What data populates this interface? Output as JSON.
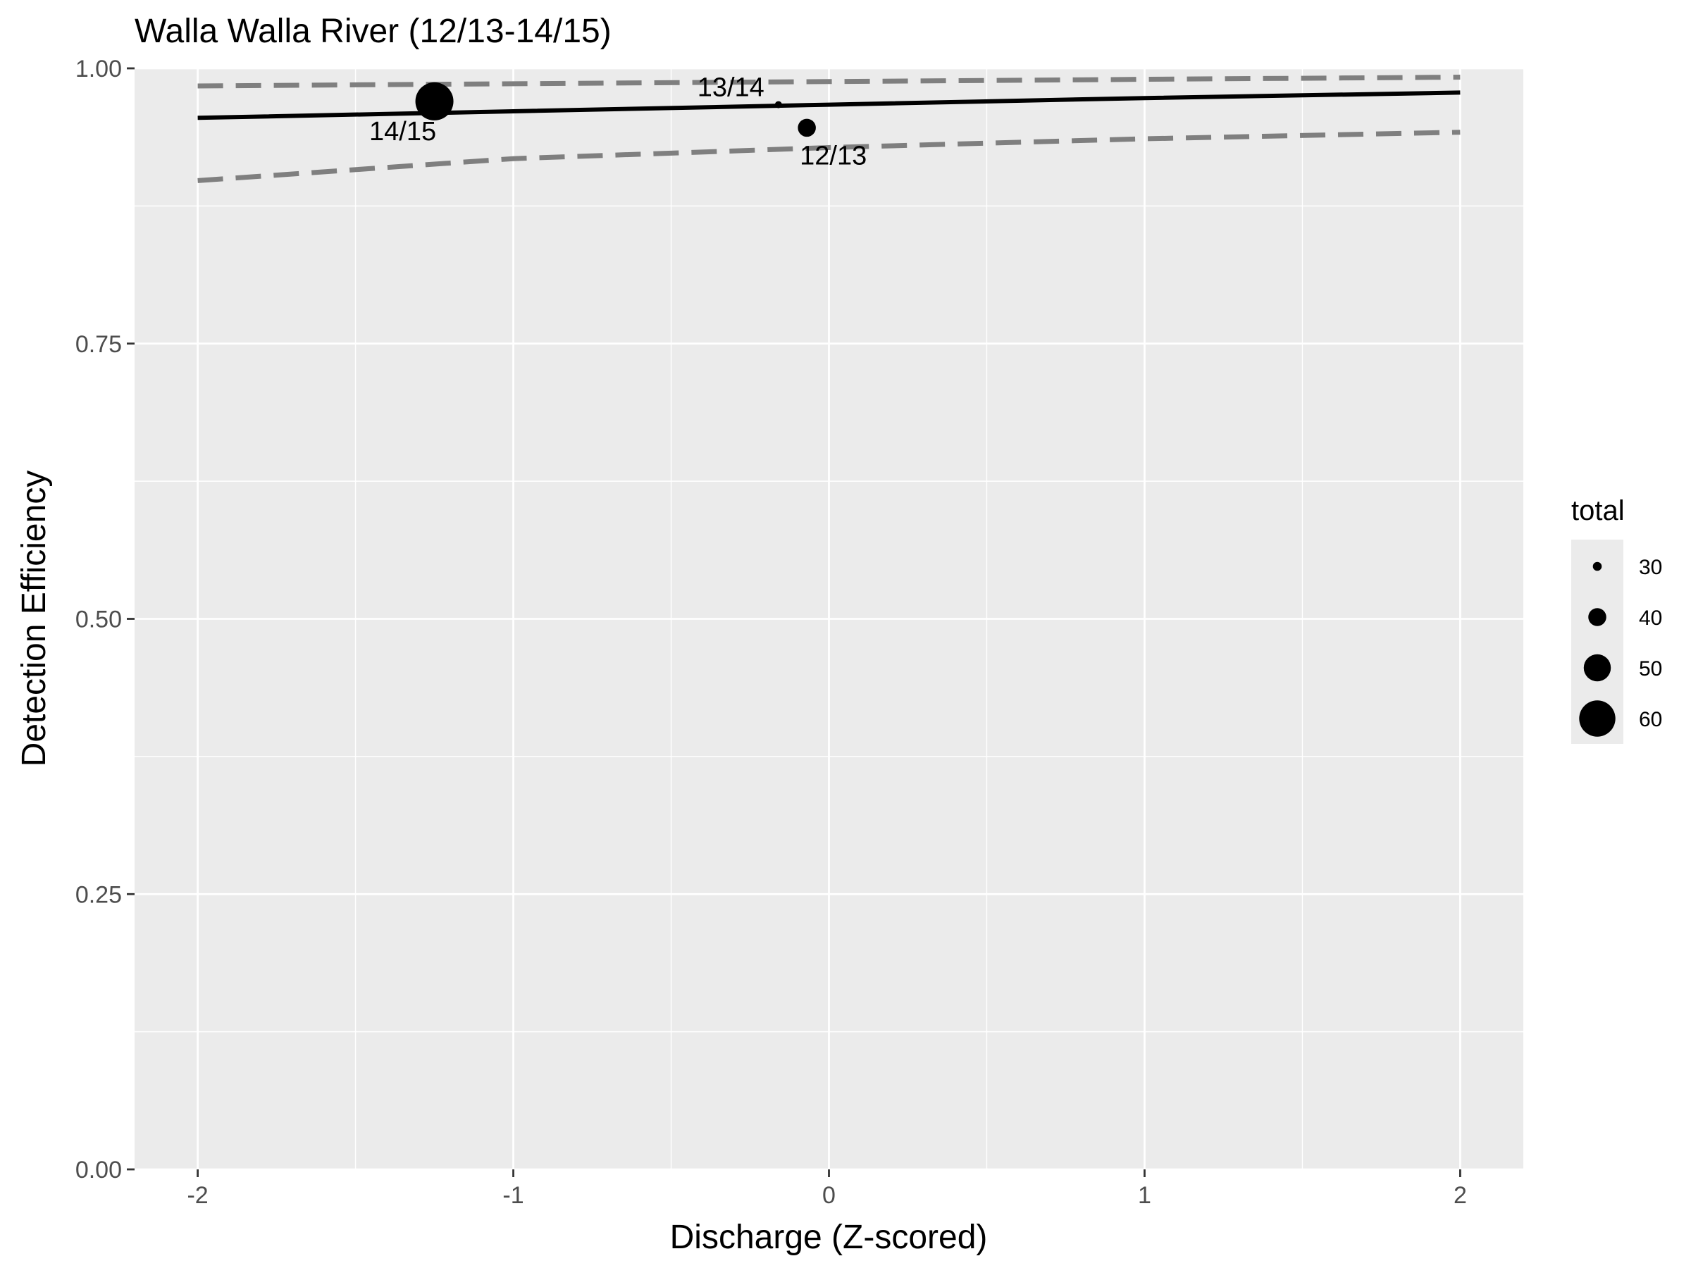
{
  "chart_data": {
    "type": "scatter",
    "title": "Walla Walla River (12/13-14/15)",
    "xlabel": "Discharge (Z-scored)",
    "ylabel": "Detection Efficiency",
    "xlim": [
      -2.2,
      2.2
    ],
    "ylim": [
      0,
      1
    ],
    "x_ticks": [
      {
        "value": -2,
        "label": "-2"
      },
      {
        "value": -1,
        "label": "-1"
      },
      {
        "value": 0,
        "label": "0"
      },
      {
        "value": 1,
        "label": "1"
      },
      {
        "value": 2,
        "label": "2"
      }
    ],
    "y_ticks": [
      {
        "value": 0,
        "label": "0.00"
      },
      {
        "value": 0.25,
        "label": "0.25"
      },
      {
        "value": 0.5,
        "label": "0.50"
      },
      {
        "value": 0.75,
        "label": "0.75"
      },
      {
        "value": 1,
        "label": "1.00"
      }
    ],
    "grid": true,
    "points": [
      {
        "label": "14/15",
        "x": -1.25,
        "y": 0.97,
        "total": 62
      },
      {
        "label": "13/14",
        "x": -0.16,
        "y": 0.967,
        "total": 28
      },
      {
        "label": "12/13",
        "x": -0.07,
        "y": 0.946,
        "total": 40
      }
    ],
    "fit_line": {
      "x": [
        -2,
        -1,
        0,
        1,
        2
      ],
      "y": [
        0.955,
        0.961,
        0.967,
        0.973,
        0.978
      ]
    },
    "ci_upper": {
      "x": [
        -2,
        -1,
        0,
        1,
        2
      ],
      "y": [
        0.984,
        0.986,
        0.988,
        0.99,
        0.992
      ]
    },
    "ci_lower": {
      "x": [
        -2,
        -1,
        0,
        1,
        2
      ],
      "y": [
        0.898,
        0.918,
        0.928,
        0.936,
        0.942
      ]
    },
    "legend": {
      "title": "total",
      "position": "right",
      "entries": [
        {
          "label": "30",
          "value": 30
        },
        {
          "label": "40",
          "value": 40
        },
        {
          "label": "50",
          "value": 50
        },
        {
          "label": "60",
          "value": 60
        }
      ]
    },
    "colors": {
      "panel": "#ebebeb",
      "grid": "#ffffff",
      "fit": "#000000",
      "ci": "#7f7f7f",
      "point": "#000000"
    }
  }
}
